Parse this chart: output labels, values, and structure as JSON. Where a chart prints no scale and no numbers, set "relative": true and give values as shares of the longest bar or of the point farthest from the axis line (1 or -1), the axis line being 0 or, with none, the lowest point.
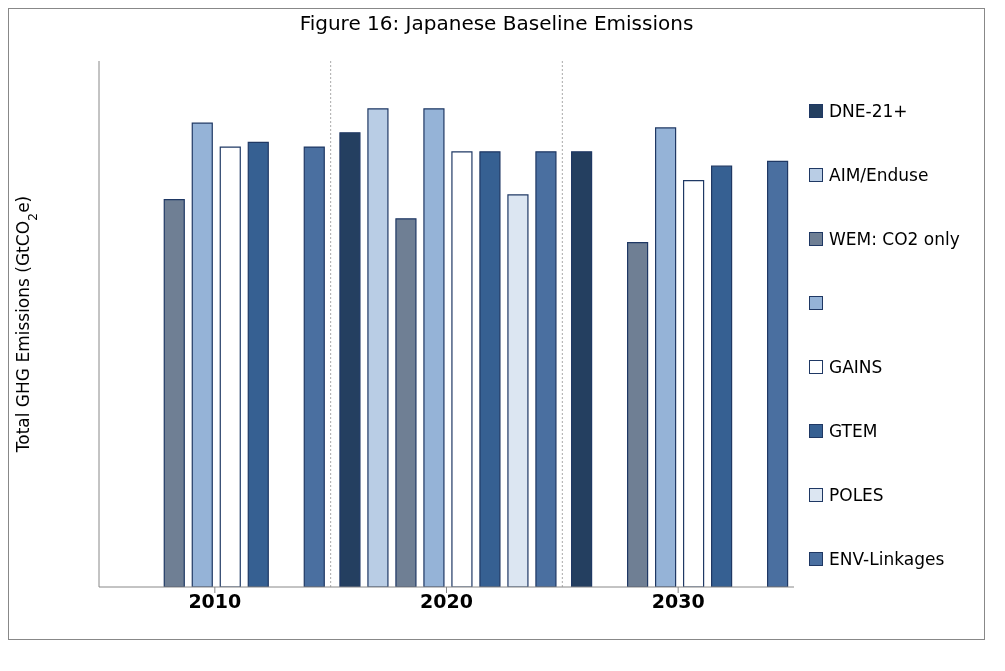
{
  "chart_data": {
    "type": "bar",
    "title": "Figure 16: Japanese Baseline Emissions",
    "ylabel": "Total GHG Emissions (GtCO$_{2}$e)",
    "categories": [
      "2010",
      "2020",
      "2030"
    ],
    "series": [
      {
        "name": "DNE-21+",
        "color": "#243f60",
        "values": [
          null,
          0.95,
          0.91
        ]
      },
      {
        "name": "AIM/Enduse",
        "color": "#b9cde5",
        "values": [
          null,
          1.0,
          null
        ]
      },
      {
        "name": "WEM: CO2 only",
        "color": "#6f7f94",
        "values": [
          0.81,
          0.77,
          0.72
        ]
      },
      {
        "color": "#95b3d7",
        "values": [
          0.97,
          1.0,
          0.96
        ]
      },
      {
        "name": "GAINS",
        "color": "#ffffff",
        "values": [
          0.92,
          0.91,
          0.85
        ]
      },
      {
        "name": "GTEM",
        "color": "#366092",
        "values": [
          0.93,
          0.91,
          0.88
        ]
      },
      {
        "name": "POLES",
        "color": "#dce6f2",
        "values": [
          null,
          0.82,
          null
        ]
      },
      {
        "name": "ENV-Linkages",
        "color": "#4a6fa0",
        "values": [
          0.92,
          0.91,
          0.89
        ]
      }
    ],
    "relative": true,
    "grid": "x",
    "legend": "right"
  }
}
